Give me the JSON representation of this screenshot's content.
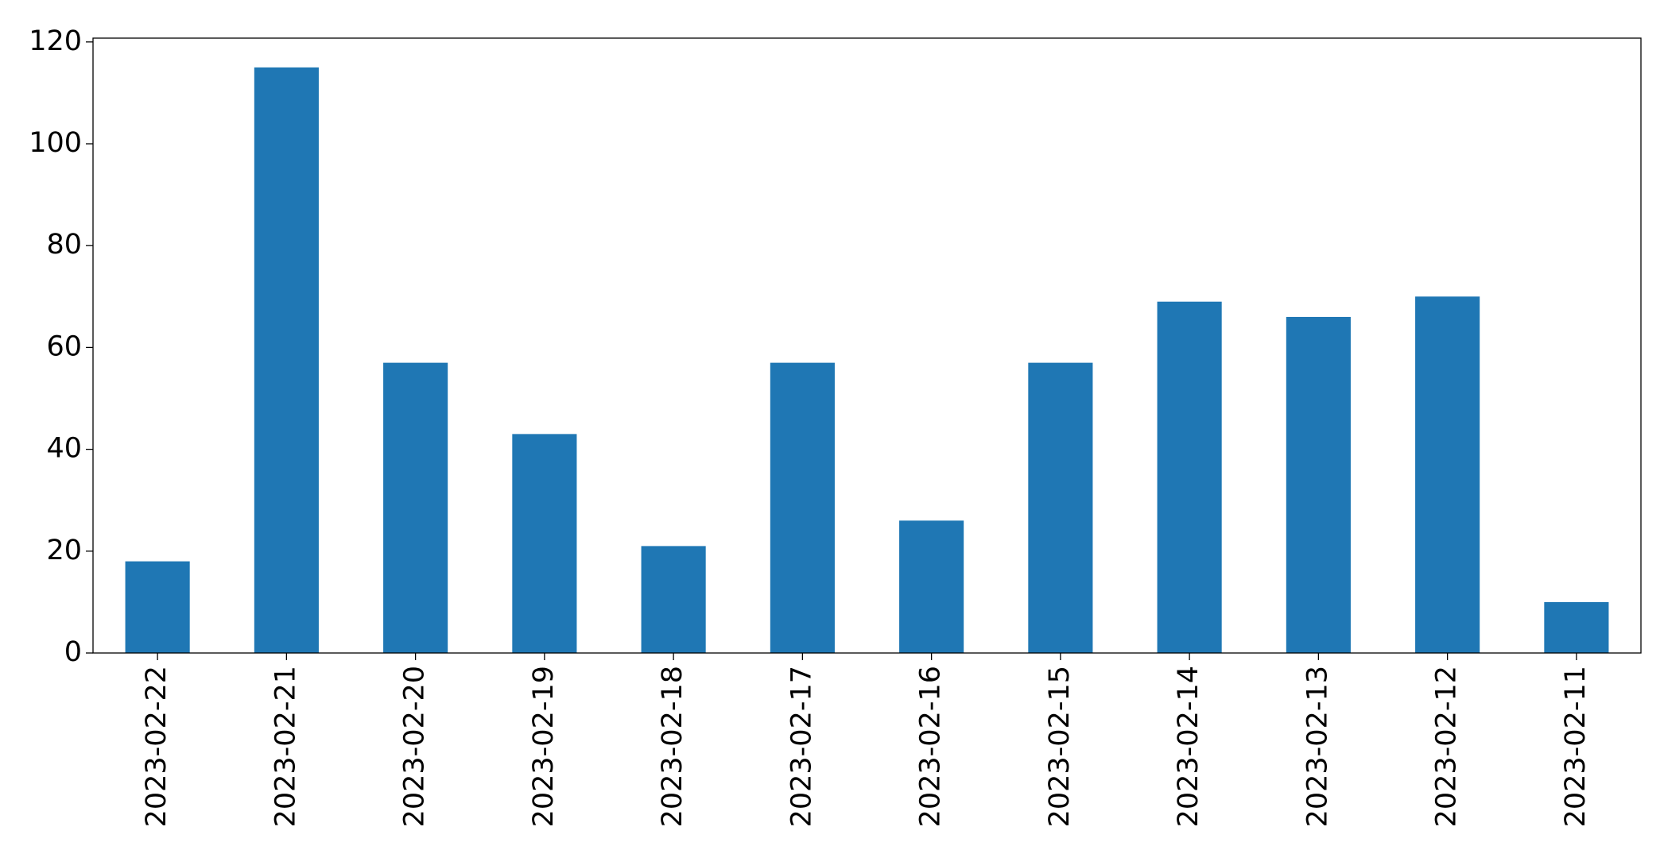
{
  "chart_data": {
    "type": "bar",
    "categories": [
      "2023-02-22",
      "2023-02-21",
      "2023-02-20",
      "2023-02-19",
      "2023-02-18",
      "2023-02-17",
      "2023-02-16",
      "2023-02-15",
      "2023-02-14",
      "2023-02-13",
      "2023-02-12",
      "2023-02-11"
    ],
    "values": [
      18,
      115,
      57,
      43,
      21,
      57,
      26,
      57,
      69,
      66,
      70,
      10
    ],
    "color": "#1f77b4",
    "ylim": [
      0,
      120.75
    ],
    "yticks": [
      0,
      20,
      40,
      60,
      80,
      100,
      120
    ],
    "grid": false
  }
}
